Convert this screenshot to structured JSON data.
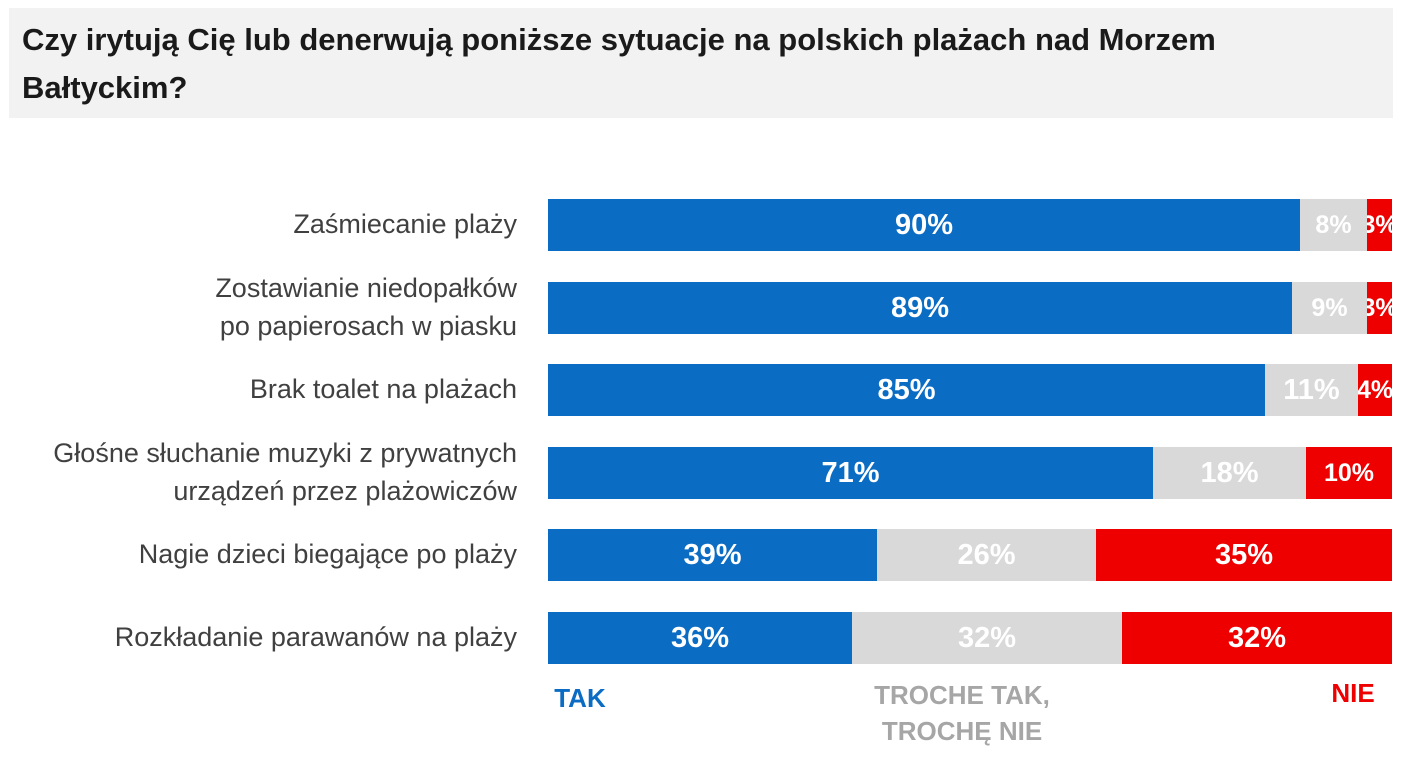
{
  "title": "Czy irytują Cię lub denerwują poniższe sytuacje na polskich plażach nad Morzem Bałtyckim?",
  "colors": {
    "tak": "#0b6cc4",
    "troche": "#d9d9d9",
    "nie": "#ee0000"
  },
  "chart_data": {
    "type": "bar",
    "orientation": "horizontal",
    "stacked": true,
    "title": "Czy irytują Cię lub denerwują poniższe sytuacje na polskich plażach nad Morzem Bałtyckim?",
    "categories": [
      [
        "Zaśmiecanie plaży"
      ],
      [
        "Zostawianie niedopałków",
        "po papierosach w piasku"
      ],
      [
        "Brak toalet na plażach"
      ],
      [
        "Głośne słuchanie muzyki z prywatnych",
        "urządzeń przez plażowiczów"
      ],
      [
        "Nagie dzieci biegające po plaży"
      ],
      [
        "Rozkładanie parawanów na plaży"
      ]
    ],
    "series": [
      {
        "name": "TAK",
        "values": [
          90,
          89,
          85,
          71,
          39,
          36
        ],
        "labels": [
          "90%",
          "89%",
          "85%",
          "71%",
          "39%",
          "36%"
        ]
      },
      {
        "name": "TROCHE TAK, TROCHĘ NIE",
        "values": [
          8,
          9,
          11,
          18,
          26,
          32
        ],
        "labels": [
          "8%",
          "9%",
          "11%",
          "18%",
          "26%",
          "32%"
        ]
      },
      {
        "name": "NIE",
        "values": [
          3,
          3,
          4,
          10,
          35,
          32
        ],
        "labels": [
          "3%",
          "3%",
          "4%",
          "10%",
          "35%",
          "32%"
        ]
      }
    ],
    "legend": [
      {
        "lines": [
          "TAK"
        ]
      },
      {
        "lines": [
          "TROCHE TAK,",
          "TROCHĘ NIE"
        ]
      },
      {
        "lines": [
          "NIE"
        ]
      }
    ],
    "legend_position": "bottom"
  }
}
